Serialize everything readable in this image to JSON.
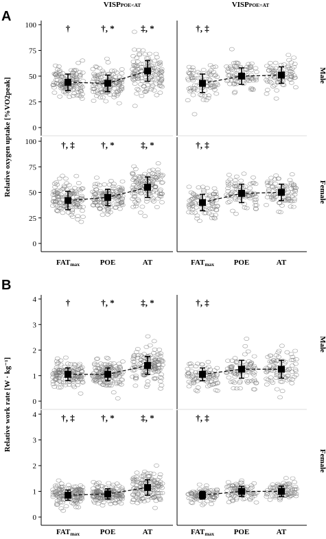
{
  "figure": {
    "panel_a_letter": "A",
    "panel_b_letter": "B",
    "column_headers": [
      {
        "main": "VISP",
        "sub": "POE<AT"
      },
      {
        "main": "VISP",
        "sub": "POE=AT"
      }
    ],
    "row_labels": [
      "Male",
      "Female",
      "Male",
      "Female"
    ],
    "ylabel_a": "Relative oxygen uptake [%VO2peak]",
    "ylabel_b": "Relative work rate [W · kg⁻¹]",
    "x_categories": [
      {
        "main": "FAT",
        "sub": "max"
      },
      {
        "main": "POE",
        "sub": ""
      },
      {
        "main": "AT",
        "sub": ""
      }
    ],
    "colors": {
      "points": "#777777",
      "mean": "#000000",
      "axis": "#000000"
    }
  },
  "chart_data": [
    {
      "type": "scatter",
      "panel": "A",
      "group": "VISP POE<AT",
      "sex": "Male",
      "categories": [
        "FATmax",
        "POE",
        "AT"
      ],
      "ylim": [
        0,
        100
      ],
      "yticks": [
        0,
        25,
        50,
        75,
        100
      ],
      "means": [
        44,
        43,
        55
      ],
      "sd": [
        8,
        8,
        10
      ],
      "annotations": [
        "†",
        "†, *",
        "‡, *"
      ]
    },
    {
      "type": "scatter",
      "panel": "A",
      "group": "VISP POE=AT",
      "sex": "Male",
      "categories": [
        "FATmax",
        "POE",
        "AT"
      ],
      "ylim": [
        0,
        100
      ],
      "means": [
        43,
        50,
        51
      ],
      "sd": [
        9,
        8,
        8
      ],
      "annotations": [
        "†, ‡",
        "",
        ""
      ]
    },
    {
      "type": "scatter",
      "panel": "A",
      "group": "VISP POE<AT",
      "sex": "Female",
      "categories": [
        "FATmax",
        "POE",
        "AT"
      ],
      "ylim": [
        0,
        100
      ],
      "yticks": [
        0,
        25,
        50,
        75,
        100
      ],
      "means": [
        42,
        45,
        55
      ],
      "sd": [
        9,
        8,
        10
      ],
      "annotations": [
        "†, ‡",
        "†, *",
        "‡, *"
      ]
    },
    {
      "type": "scatter",
      "panel": "A",
      "group": "VISP POE=AT",
      "sex": "Female",
      "categories": [
        "FATmax",
        "POE",
        "AT"
      ],
      "ylim": [
        0,
        100
      ],
      "means": [
        40,
        49,
        50
      ],
      "sd": [
        8,
        9,
        8
      ],
      "annotations": [
        "†, ‡",
        "",
        ""
      ]
    },
    {
      "type": "scatter",
      "panel": "B",
      "group": "VISP POE<AT",
      "sex": "Male",
      "categories": [
        "FATmax",
        "POE",
        "AT"
      ],
      "ylim": [
        0,
        4
      ],
      "yticks": [
        0,
        1,
        2,
        3,
        4
      ],
      "means": [
        1.05,
        1.05,
        1.4
      ],
      "sd": [
        0.25,
        0.25,
        0.35
      ],
      "annotations": [
        "†",
        "†, *",
        "‡, *"
      ]
    },
    {
      "type": "scatter",
      "panel": "B",
      "group": "VISP POE=AT",
      "sex": "Male",
      "categories": [
        "FATmax",
        "POE",
        "AT"
      ],
      "ylim": [
        0,
        4
      ],
      "means": [
        1.05,
        1.25,
        1.25
      ],
      "sd": [
        0.25,
        0.35,
        0.35
      ],
      "annotations": [
        "†, ‡",
        "",
        ""
      ]
    },
    {
      "type": "scatter",
      "panel": "B",
      "group": "VISP POE<AT",
      "sex": "Female",
      "categories": [
        "FATmax",
        "POE",
        "AT"
      ],
      "ylim": [
        0,
        4
      ],
      "yticks": [
        0,
        1,
        2,
        3,
        4
      ],
      "means": [
        0.85,
        0.9,
        1.15
      ],
      "sd": [
        0.2,
        0.2,
        0.3
      ],
      "annotations": [
        "†, ‡",
        "†, *",
        "‡, *"
      ]
    },
    {
      "type": "scatter",
      "panel": "B",
      "group": "VISP POE=AT",
      "sex": "Female",
      "categories": [
        "FATmax",
        "POE",
        "AT"
      ],
      "ylim": [
        0,
        4
      ],
      "means": [
        0.85,
        1.0,
        1.0
      ],
      "sd": [
        0.15,
        0.2,
        0.2
      ],
      "annotations": [
        "†, ‡",
        "",
        ""
      ]
    }
  ]
}
